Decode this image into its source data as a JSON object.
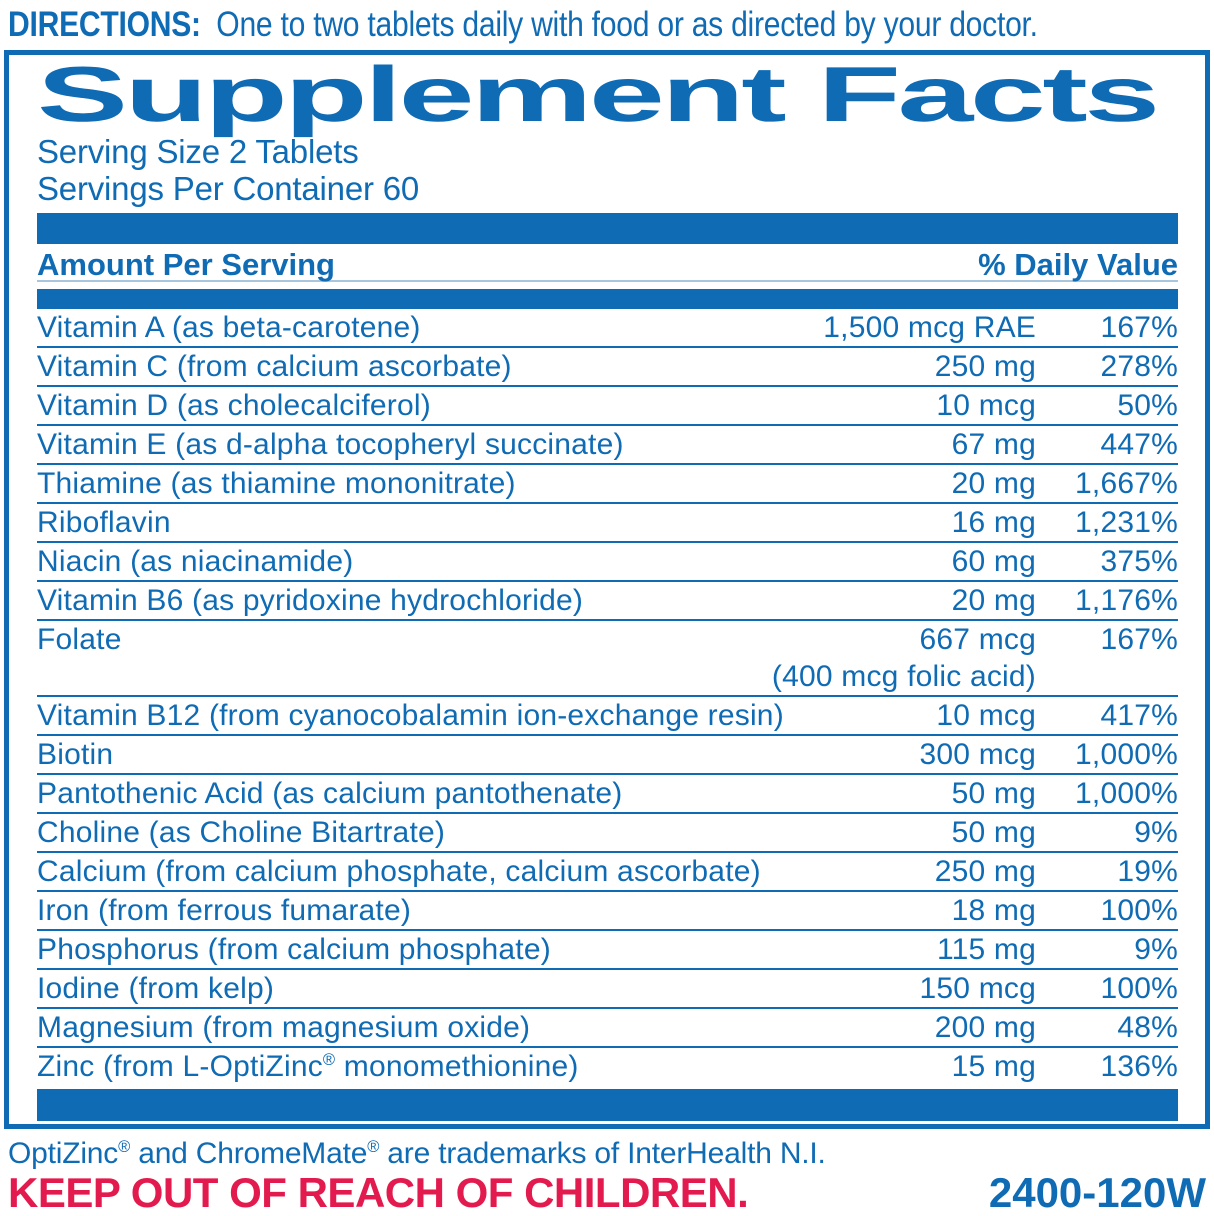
{
  "colors": {
    "accent_blue": "#0F6BB4",
    "warning_red": "#E31A4E"
  },
  "directions": {
    "label": "DIRECTIONS:",
    "text": "One to two tablets daily with food or as directed by your doctor."
  },
  "panel": {
    "title": "Supplement Facts",
    "serving_size": "Serving Size 2 Tablets",
    "servings_per_container": "Servings Per Container 60",
    "header": {
      "left": "Amount Per Serving",
      "right": "% Daily Value"
    },
    "rows": [
      {
        "name": "Vitamin A (as beta-carotene)",
        "amount": "1,500 mcg RAE",
        "dv": "167%"
      },
      {
        "name": "Vitamin C (from calcium ascorbate)",
        "amount": "250 mg",
        "dv": "278%"
      },
      {
        "name": "Vitamin D (as cholecalciferol)",
        "amount": "10 mcg",
        "dv": "50%"
      },
      {
        "name": "Vitamin E (as d-alpha tocopheryl succinate)",
        "amount": "67 mg",
        "dv": "447%"
      },
      {
        "name": "Thiamine (as thiamine mononitrate)",
        "amount": "20 mg",
        "dv": "1,667%"
      },
      {
        "name": "Riboflavin",
        "amount": "16 mg",
        "dv": "1,231%"
      },
      {
        "name": "Niacin (as niacinamide)",
        "amount": "60 mg",
        "dv": "375%"
      },
      {
        "name": "Vitamin B6 (as pyridoxine hydrochloride)",
        "amount": "20 mg",
        "dv": "1,176%"
      },
      {
        "name": "Folate",
        "amount": "667 mcg",
        "dv": "167%",
        "amount_note": "(400 mcg folic acid)"
      },
      {
        "name": "Vitamin B12 (from cyanocobalamin ion-exchange resin)",
        "amount": "10 mcg",
        "dv": "417%"
      },
      {
        "name": "Biotin",
        "amount": "300 mcg",
        "dv": "1,000%"
      },
      {
        "name": "Pantothenic Acid (as calcium pantothenate)",
        "amount": "50 mg",
        "dv": "1,000%"
      },
      {
        "name": "Choline (as Choline Bitartrate)",
        "amount": "50 mg",
        "dv": "9%"
      },
      {
        "name": "Calcium (from calcium phosphate, calcium ascorbate)",
        "amount": "250 mg",
        "dv": "19%"
      },
      {
        "name": "Iron (from ferrous fumarate)",
        "amount": "18 mg",
        "dv": "100%"
      },
      {
        "name": "Phosphorus (from calcium phosphate)",
        "amount": "115 mg",
        "dv": "9%"
      },
      {
        "name": "Iodine (from kelp)",
        "amount": "150 mcg",
        "dv": "100%"
      },
      {
        "name": "Magnesium (from magnesium oxide)",
        "amount": "200 mg",
        "dv": "48%"
      },
      {
        "name": "Zinc (from L-OptiZinc® monomethionine)",
        "amount": "15 mg",
        "dv": "136%"
      }
    ]
  },
  "footer": {
    "trademark": "OptiZinc® and ChromeMate® are trademarks of InterHealth N.I.",
    "warning": "KEEP OUT OF REACH OF CHILDREN.",
    "code": "2400-120W"
  }
}
